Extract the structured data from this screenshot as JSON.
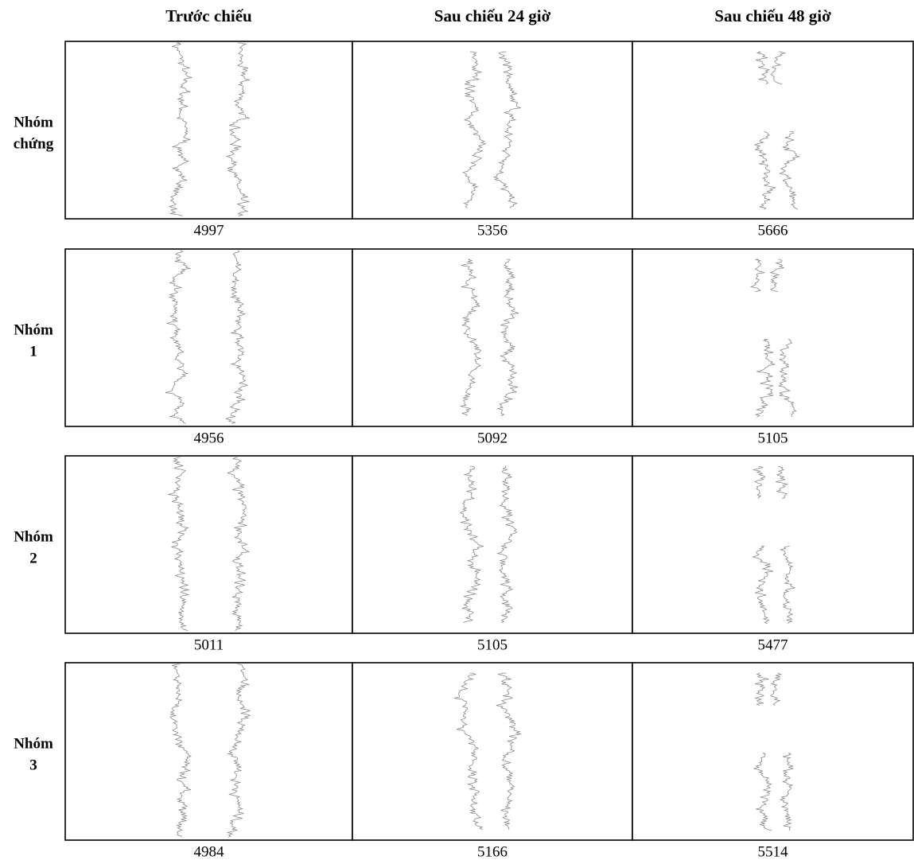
{
  "columns": [
    "Trước chiếu",
    "Sau chiếu 24 giờ",
    "Sau chiếu 48 giờ"
  ],
  "rows": [
    {
      "label": [
        "Nhóm",
        "chứng"
      ],
      "values": [
        "4997",
        "5356",
        "5666"
      ]
    },
    {
      "label": [
        "Nhóm",
        "1"
      ],
      "values": [
        "4956",
        "5092",
        "5105"
      ]
    },
    {
      "label": [
        "Nhóm",
        "2"
      ],
      "values": [
        "5011",
        "5105",
        "5477"
      ]
    },
    {
      "label": [
        "Nhóm",
        "3"
      ],
      "values": [
        "4984",
        "5166",
        "5514"
      ]
    }
  ]
}
